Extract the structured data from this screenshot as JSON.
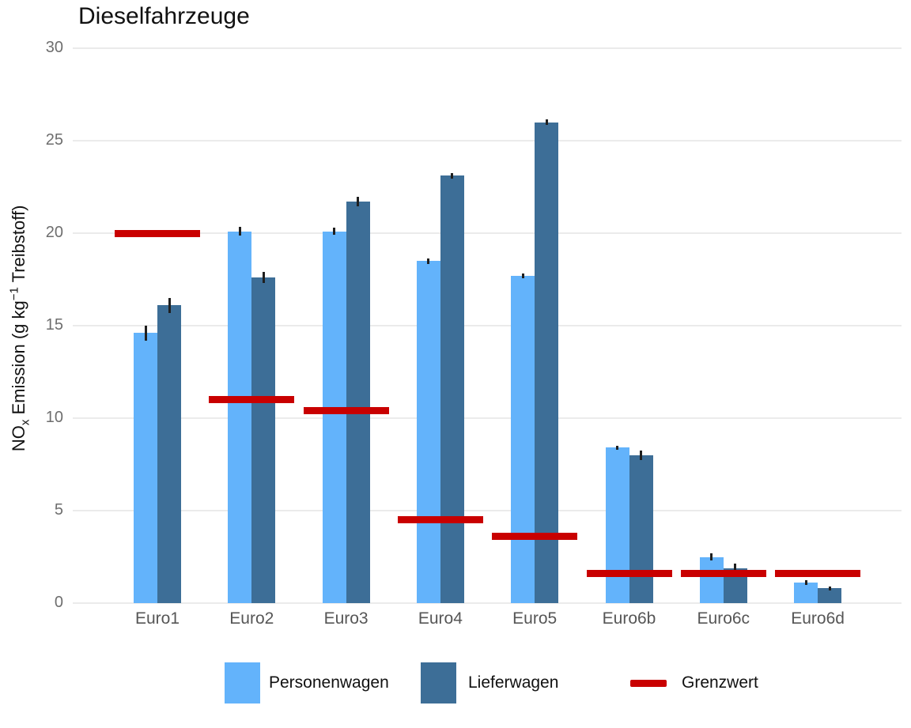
{
  "title": "Dieselfahrzeuge",
  "chart_data": {
    "type": "bar",
    "title": "Dieselfahrzeuge",
    "categories": [
      "Euro1",
      "Euro2",
      "Euro3",
      "Euro4",
      "Euro5",
      "Euro6b",
      "Euro6c",
      "Euro6d"
    ],
    "series": [
      {
        "name": "Personenwagen",
        "color": "#63B3FB",
        "values": [
          14.6,
          20.1,
          20.1,
          18.5,
          17.7,
          8.4,
          2.5,
          1.1
        ],
        "errors": [
          0.4,
          0.25,
          0.2,
          0.15,
          0.12,
          0.12,
          0.2,
          0.12
        ]
      },
      {
        "name": "Lieferwagen",
        "color": "#3D6E97",
        "values": [
          16.1,
          17.6,
          21.7,
          23.1,
          26.0,
          8.0,
          1.9,
          0.8
        ],
        "errors": [
          0.4,
          0.3,
          0.25,
          0.15,
          0.15,
          0.25,
          0.25,
          0.1
        ]
      }
    ],
    "limit_series": {
      "name": "Grenzwert",
      "color": "#C90000",
      "values": [
        20.0,
        11.0,
        10.4,
        4.5,
        3.6,
        1.6,
        1.6,
        1.6
      ]
    },
    "ylabel": "NOx Emission (g kg⁻¹ Treibstoff)",
    "ylabel_parts": {
      "pre": "NO",
      "sub": "x",
      "mid": " Emission (g kg",
      "sup": "−1",
      "post": " Treibstoff)"
    },
    "xlabel": "",
    "ylim": [
      0,
      30
    ],
    "yticks": [
      0,
      5,
      10,
      15,
      20,
      25,
      30
    ],
    "grid": "horizontal",
    "legend_position": "bottom",
    "error_bars": true
  },
  "colors": {
    "background": "#FFFFFF",
    "gridline": "#EBEBEB",
    "axis_text": "#6E6E6E",
    "title_text": "#111111",
    "errorbar": "#1F1F1F"
  },
  "legend": {
    "items": [
      {
        "label": "Personenwagen"
      },
      {
        "label": "Lieferwagen"
      },
      {
        "label": "Grenzwert"
      }
    ]
  }
}
